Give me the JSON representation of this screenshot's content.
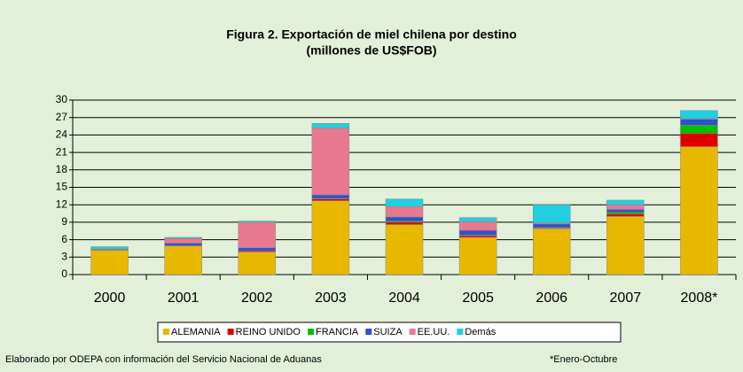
{
  "chart_data": {
    "type": "stacked_bar",
    "title": "Figura 2. Exportación de miel chilena por destino",
    "subtitle": "(millones de US$FOB)",
    "categories": [
      "2000",
      "2001",
      "2002",
      "2003",
      "2004",
      "2005",
      "2006",
      "2007",
      "2008*"
    ],
    "series": [
      {
        "name": "ALEMANIA",
        "color": "#e8b800",
        "values": [
          4.2,
          4.9,
          3.9,
          12.7,
          8.6,
          6.4,
          7.9,
          10.0,
          22.0
        ]
      },
      {
        "name": "REINO UNIDO",
        "color": "#e00000",
        "values": [
          0.1,
          0.1,
          0.2,
          0.3,
          0.4,
          0.3,
          0.1,
          0.4,
          2.3
        ]
      },
      {
        "name": "FRANCIA",
        "color": "#00c000",
        "values": [
          0,
          0,
          0,
          0.1,
          0.2,
          0.1,
          0.1,
          0.3,
          1.4
        ]
      },
      {
        "name": "SUIZA",
        "color": "#3050d0",
        "values": [
          0.1,
          0.4,
          0.5,
          0.6,
          0.7,
          0.8,
          0.6,
          0.5,
          1.0
        ]
      },
      {
        "name": "EE.UU.",
        "color": "#e87890",
        "values": [
          0,
          0.8,
          4.4,
          11.5,
          1.8,
          1.5,
          0.2,
          0.8,
          0.1
        ]
      },
      {
        "name": "Demás",
        "color": "#20d0e0",
        "values": [
          0.4,
          0.2,
          0.2,
          0.8,
          1.3,
          0.7,
          3.1,
          0.8,
          1.4
        ]
      }
    ],
    "ylim": [
      0,
      30
    ],
    "yticks": [
      0,
      3,
      6,
      9,
      12,
      15,
      18,
      21,
      24,
      27,
      30
    ],
    "grid": true,
    "source": "Elaborado por ODEPA con información del Servicio Nacional de Aduanas",
    "note": "*Enero-Octubre"
  }
}
